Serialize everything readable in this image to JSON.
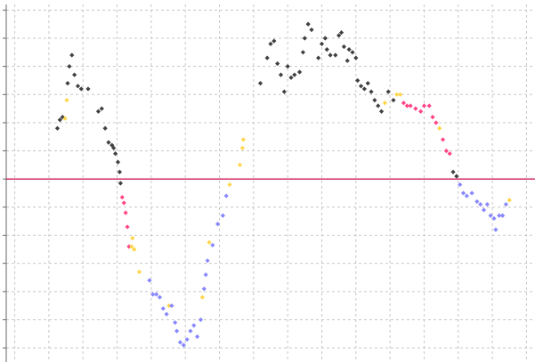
{
  "chart_data": {
    "type": "scatter",
    "title": "",
    "xlabel": "",
    "ylabel": "",
    "grid": true,
    "legend": "none",
    "xlim": [
      -1.5,
      29.5
    ],
    "ylim": [
      -6.5,
      6.2
    ],
    "reference_line": {
      "y": 0,
      "color": "#cc0044"
    },
    "colors": {
      "black": "#404040",
      "yellow": "#ffd54a",
      "pink": "#ff4488",
      "blue": "#8888ff"
    },
    "points": [
      {
        "x": 1.5,
        "y": 1.8,
        "c": "black"
      },
      {
        "x": 1.65,
        "y": 2.1,
        "c": "black"
      },
      {
        "x": 1.8,
        "y": 2.2,
        "c": "black"
      },
      {
        "x": 1.95,
        "y": 2.15,
        "c": "yellow"
      },
      {
        "x": 2.05,
        "y": 2.8,
        "c": "yellow"
      },
      {
        "x": 2.1,
        "y": 3.4,
        "c": "black"
      },
      {
        "x": 2.2,
        "y": 4.0,
        "c": "black"
      },
      {
        "x": 2.35,
        "y": 4.4,
        "c": "black"
      },
      {
        "x": 2.5,
        "y": 3.7,
        "c": "black"
      },
      {
        "x": 2.7,
        "y": 3.3,
        "c": "black"
      },
      {
        "x": 2.9,
        "y": 3.2,
        "c": "black"
      },
      {
        "x": 3.3,
        "y": 3.2,
        "c": "black"
      },
      {
        "x": 3.9,
        "y": 2.4,
        "c": "black"
      },
      {
        "x": 4.1,
        "y": 2.5,
        "c": "black"
      },
      {
        "x": 4.3,
        "y": 1.8,
        "c": "black"
      },
      {
        "x": 4.5,
        "y": 1.3,
        "c": "black"
      },
      {
        "x": 4.7,
        "y": 1.2,
        "c": "black"
      },
      {
        "x": 4.8,
        "y": 1.1,
        "c": "black"
      },
      {
        "x": 4.9,
        "y": 0.9,
        "c": "black"
      },
      {
        "x": 5.05,
        "y": 0.6,
        "c": "black"
      },
      {
        "x": 5.15,
        "y": 0.25,
        "c": "black"
      },
      {
        "x": 5.2,
        "y": -0.15,
        "c": "black"
      },
      {
        "x": 5.3,
        "y": -0.65,
        "c": "pink"
      },
      {
        "x": 5.4,
        "y": -0.85,
        "c": "pink"
      },
      {
        "x": 5.5,
        "y": -1.2,
        "c": "pink"
      },
      {
        "x": 5.6,
        "y": -1.7,
        "c": "pink"
      },
      {
        "x": 5.7,
        "y": -2.4,
        "c": "pink"
      },
      {
        "x": 5.85,
        "y": -2.4,
        "c": "yellow"
      },
      {
        "x": 5.9,
        "y": -2.1,
        "c": "yellow"
      },
      {
        "x": 6.0,
        "y": -2.5,
        "c": "yellow"
      },
      {
        "x": 6.3,
        "y": -3.3,
        "c": "yellow"
      },
      {
        "x": 6.9,
        "y": -3.6,
        "c": "blue"
      },
      {
        "x": 7.1,
        "y": -4.1,
        "c": "blue"
      },
      {
        "x": 7.3,
        "y": -4.1,
        "c": "blue"
      },
      {
        "x": 7.5,
        "y": -4.2,
        "c": "blue"
      },
      {
        "x": 7.7,
        "y": -4.6,
        "c": "blue"
      },
      {
        "x": 7.9,
        "y": -4.8,
        "c": "blue"
      },
      {
        "x": 8.05,
        "y": -4.5,
        "c": "yellow"
      },
      {
        "x": 8.2,
        "y": -4.5,
        "c": "blue"
      },
      {
        "x": 8.4,
        "y": -5.1,
        "c": "blue"
      },
      {
        "x": 8.5,
        "y": -5.4,
        "c": "blue"
      },
      {
        "x": 8.7,
        "y": -5.8,
        "c": "blue"
      },
      {
        "x": 8.9,
        "y": -5.9,
        "c": "blue"
      },
      {
        "x": 9.1,
        "y": -5.7,
        "c": "blue"
      },
      {
        "x": 9.3,
        "y": -5.4,
        "c": "blue"
      },
      {
        "x": 9.5,
        "y": -5.2,
        "c": "blue"
      },
      {
        "x": 9.7,
        "y": -5.6,
        "c": "blue"
      },
      {
        "x": 9.9,
        "y": -5.0,
        "c": "blue"
      },
      {
        "x": 10.0,
        "y": -4.2,
        "c": "yellow"
      },
      {
        "x": 10.1,
        "y": -3.9,
        "c": "blue"
      },
      {
        "x": 10.2,
        "y": -3.4,
        "c": "blue"
      },
      {
        "x": 10.3,
        "y": -2.9,
        "c": "blue"
      },
      {
        "x": 10.4,
        "y": -2.25,
        "c": "yellow"
      },
      {
        "x": 10.6,
        "y": -2.35,
        "c": "blue"
      },
      {
        "x": 10.9,
        "y": -1.6,
        "c": "blue"
      },
      {
        "x": 11.2,
        "y": -1.3,
        "c": "blue"
      },
      {
        "x": 11.4,
        "y": -0.6,
        "c": "blue"
      },
      {
        "x": 11.6,
        "y": -0.2,
        "c": "yellow"
      },
      {
        "x": 12.2,
        "y": 0.5,
        "c": "yellow"
      },
      {
        "x": 12.35,
        "y": 1.1,
        "c": "yellow"
      },
      {
        "x": 12.4,
        "y": 1.4,
        "c": "yellow"
      },
      {
        "x": 13.4,
        "y": 3.4,
        "c": "black"
      },
      {
        "x": 13.8,
        "y": 4.3,
        "c": "black"
      },
      {
        "x": 14.0,
        "y": 4.8,
        "c": "black"
      },
      {
        "x": 14.2,
        "y": 4.9,
        "c": "black"
      },
      {
        "x": 14.4,
        "y": 4.1,
        "c": "black"
      },
      {
        "x": 14.6,
        "y": 3.7,
        "c": "black"
      },
      {
        "x": 14.8,
        "y": 3.1,
        "c": "black"
      },
      {
        "x": 15.0,
        "y": 4.0,
        "c": "black"
      },
      {
        "x": 15.2,
        "y": 3.6,
        "c": "black"
      },
      {
        "x": 15.4,
        "y": 3.7,
        "c": "black"
      },
      {
        "x": 15.7,
        "y": 3.8,
        "c": "black"
      },
      {
        "x": 15.9,
        "y": 4.5,
        "c": "black"
      },
      {
        "x": 16.0,
        "y": 5.0,
        "c": "black"
      },
      {
        "x": 16.2,
        "y": 5.5,
        "c": "black"
      },
      {
        "x": 16.4,
        "y": 5.3,
        "c": "black"
      },
      {
        "x": 16.8,
        "y": 4.3,
        "c": "black"
      },
      {
        "x": 17.0,
        "y": 4.8,
        "c": "black"
      },
      {
        "x": 17.2,
        "y": 5.0,
        "c": "black"
      },
      {
        "x": 17.3,
        "y": 4.6,
        "c": "black"
      },
      {
        "x": 17.5,
        "y": 4.4,
        "c": "black"
      },
      {
        "x": 17.8,
        "y": 4.4,
        "c": "black"
      },
      {
        "x": 18.0,
        "y": 5.1,
        "c": "black"
      },
      {
        "x": 18.15,
        "y": 5.2,
        "c": "black"
      },
      {
        "x": 18.3,
        "y": 4.7,
        "c": "black"
      },
      {
        "x": 18.5,
        "y": 4.2,
        "c": "black"
      },
      {
        "x": 18.6,
        "y": 4.6,
        "c": "black"
      },
      {
        "x": 18.8,
        "y": 4.5,
        "c": "black"
      },
      {
        "x": 19.0,
        "y": 4.3,
        "c": "black"
      },
      {
        "x": 19.1,
        "y": 3.5,
        "c": "black"
      },
      {
        "x": 19.3,
        "y": 3.3,
        "c": "black"
      },
      {
        "x": 19.5,
        "y": 3.2,
        "c": "black"
      },
      {
        "x": 19.7,
        "y": 3.4,
        "c": "black"
      },
      {
        "x": 19.9,
        "y": 3.1,
        "c": "black"
      },
      {
        "x": 20.1,
        "y": 2.8,
        "c": "black"
      },
      {
        "x": 20.3,
        "y": 2.6,
        "c": "black"
      },
      {
        "x": 20.5,
        "y": 2.4,
        "c": "black"
      },
      {
        "x": 20.7,
        "y": 2.7,
        "c": "yellow"
      },
      {
        "x": 20.9,
        "y": 3.1,
        "c": "black"
      },
      {
        "x": 21.2,
        "y": 2.8,
        "c": "black"
      },
      {
        "x": 21.4,
        "y": 3.0,
        "c": "yellow"
      },
      {
        "x": 21.6,
        "y": 3.0,
        "c": "yellow"
      },
      {
        "x": 21.8,
        "y": 2.7,
        "c": "pink"
      },
      {
        "x": 22.0,
        "y": 2.6,
        "c": "pink"
      },
      {
        "x": 22.2,
        "y": 2.6,
        "c": "pink"
      },
      {
        "x": 22.5,
        "y": 2.5,
        "c": "pink"
      },
      {
        "x": 22.8,
        "y": 2.4,
        "c": "pink"
      },
      {
        "x": 23.0,
        "y": 2.6,
        "c": "pink"
      },
      {
        "x": 23.3,
        "y": 2.6,
        "c": "pink"
      },
      {
        "x": 23.5,
        "y": 2.2,
        "c": "pink"
      },
      {
        "x": 23.7,
        "y": 2.0,
        "c": "pink"
      },
      {
        "x": 23.9,
        "y": 1.8,
        "c": "yellow"
      },
      {
        "x": 24.1,
        "y": 1.4,
        "c": "pink"
      },
      {
        "x": 24.3,
        "y": 1.0,
        "c": "pink"
      },
      {
        "x": 24.5,
        "y": 0.9,
        "c": "pink"
      },
      {
        "x": 24.7,
        "y": 0.25,
        "c": "black"
      },
      {
        "x": 24.9,
        "y": 0.1,
        "c": "black"
      },
      {
        "x": 25.1,
        "y": -0.2,
        "c": "blue"
      },
      {
        "x": 25.3,
        "y": -0.5,
        "c": "blue"
      },
      {
        "x": 25.5,
        "y": -0.6,
        "c": "blue"
      },
      {
        "x": 25.8,
        "y": -0.5,
        "c": "blue"
      },
      {
        "x": 26.1,
        "y": -0.8,
        "c": "blue"
      },
      {
        "x": 26.3,
        "y": -0.9,
        "c": "blue"
      },
      {
        "x": 26.5,
        "y": -1.1,
        "c": "blue"
      },
      {
        "x": 26.7,
        "y": -0.9,
        "c": "blue"
      },
      {
        "x": 26.9,
        "y": -1.3,
        "c": "blue"
      },
      {
        "x": 27.1,
        "y": -1.4,
        "c": "blue"
      },
      {
        "x": 27.2,
        "y": -1.8,
        "c": "blue"
      },
      {
        "x": 27.4,
        "y": -1.3,
        "c": "blue"
      },
      {
        "x": 27.6,
        "y": -1.3,
        "c": "blue"
      },
      {
        "x": 27.8,
        "y": -0.9,
        "c": "blue"
      },
      {
        "x": 28.0,
        "y": -0.75,
        "c": "yellow"
      }
    ]
  }
}
